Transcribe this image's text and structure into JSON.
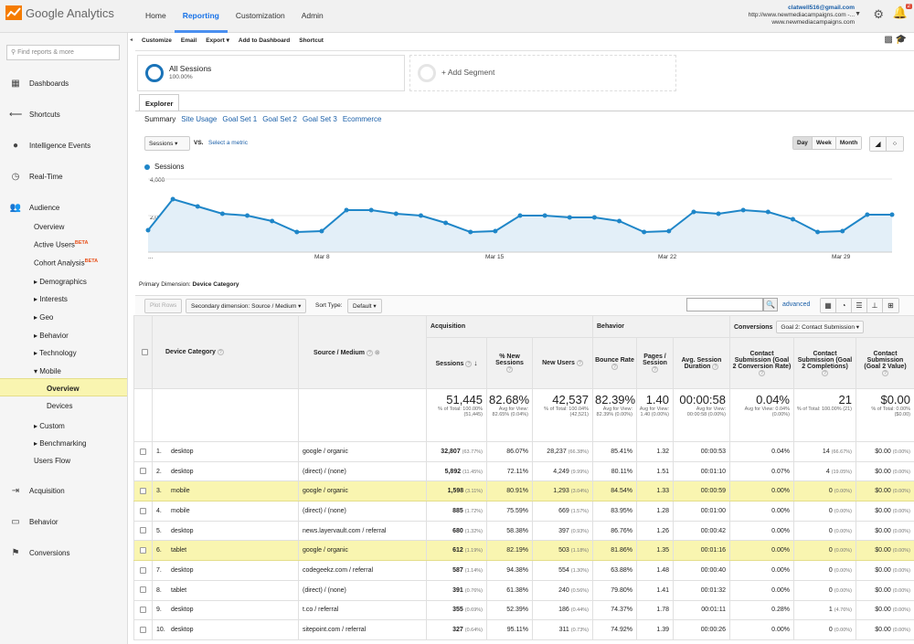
{
  "app": {
    "name": "Google Analytics"
  },
  "topnav": [
    "Home",
    "Reporting",
    "Customization",
    "Admin"
  ],
  "account": {
    "email": "clatwell516@gmail.com",
    "property": "http://www.newmediacampaigns.com -...",
    "view": "www.newmediacampaigns.com"
  },
  "notifications": {
    "count": "2"
  },
  "sidebar": {
    "search_placeholder": "Find reports & more",
    "items": [
      "Dashboards",
      "Shortcuts",
      "Intelligence Events",
      "Real-Time",
      "Audience",
      "Acquisition",
      "Behavior",
      "Conversions"
    ],
    "audience_sub": [
      "Overview",
      "Active Users",
      "Cohort Analysis",
      "Demographics",
      "Interests",
      "Geo",
      "Behavior",
      "Technology",
      "Mobile",
      "Overview",
      "Devices",
      "Custom",
      "Benchmarking",
      "Users Flow"
    ],
    "beta": "BETA"
  },
  "toolbar": [
    "Customize",
    "Email",
    "Export",
    "Add to Dashboard",
    "Shortcut"
  ],
  "segments": {
    "active": {
      "name": "All Sessions",
      "pct": "100.00%"
    },
    "add": "+ Add Segment"
  },
  "explorer": {
    "tab": "Explorer",
    "subtabs": [
      "Summary",
      "Site Usage",
      "Goal Set 1",
      "Goal Set 2",
      "Goal Set 3",
      "Ecommerce"
    ]
  },
  "chart_controls": {
    "metric": "Sessions",
    "vs": "VS.",
    "select_metric": "Select a metric",
    "periods": [
      "Day",
      "Week",
      "Month"
    ],
    "active_period": "Day"
  },
  "chart_data": {
    "type": "area",
    "series": [
      {
        "name": "Sessions",
        "color": "#1f86c8",
        "values": [
          1200,
          2900,
          2500,
          2100,
          2000,
          1700,
          1100,
          1150,
          2300,
          2300,
          2100,
          2000,
          1600,
          1100,
          1150,
          2000,
          2000,
          1900,
          1900,
          1700,
          1100,
          1150,
          2200,
          2100,
          2300,
          2200,
          1800,
          1100,
          1150,
          2050,
          2050
        ]
      }
    ],
    "y_ticks": [
      "4,000",
      "2,000"
    ],
    "x_ticks": [
      "...",
      "Mar 8",
      "Mar 15",
      "Mar 22",
      "Mar 29"
    ],
    "ylim": [
      0,
      4000
    ],
    "grid": true,
    "legend": "top-left"
  },
  "table_controls": {
    "primary_dim_label": "Primary Dimension:",
    "primary_dim": "Device Category",
    "plot_rows": "Plot Rows",
    "secondary": "Secondary dimension: Source / Medium",
    "sort_label": "Sort Type:",
    "sort": "Default",
    "advanced": "advanced"
  },
  "table": {
    "groups": {
      "acq": "Acquisition",
      "beh": "Behavior",
      "conv": "Conversions",
      "goal": "Goal 2: Contact Submission"
    },
    "headers": [
      "Device Category",
      "Source / Medium",
      "Sessions",
      "% New Sessions",
      "New Users",
      "Bounce Rate",
      "Pages / Session",
      "Avg. Session Duration",
      "Contact Submission (Goal 2 Conversion Rate)",
      "Contact Submission (Goal 2 Completions)",
      "Contact Submission (Goal 2 Value)"
    ],
    "totals": [
      {
        "big": "51,445",
        "small": "% of Total: 100.00% (51,445)"
      },
      {
        "big": "82.68%",
        "small": "Avg for View: 82.65% (0.04%)"
      },
      {
        "big": "42,537",
        "small": "% of Total: 100.04% (42,521)"
      },
      {
        "big": "82.39%",
        "small": "Avg for View: 82.39% (0.00%)"
      },
      {
        "big": "1.40",
        "small": "Avg for View: 1.40 (0.00%)"
      },
      {
        "big": "00:00:58",
        "small": "Avg for View: 00:00:58 (0.00%)"
      },
      {
        "big": "0.04%",
        "small": "Avg for View: 0.04% (0.00%)"
      },
      {
        "big": "21",
        "small": "% of Total: 100.00% (21)"
      },
      {
        "big": "$0.00",
        "small": "% of Total: 0.00% ($0.00)"
      }
    ],
    "rows": [
      {
        "n": "1.",
        "dev": "desktop",
        "src": "google / organic",
        "s": "32,807",
        "sp": "(63.77%)",
        "ns": "86.07%",
        "nu": "28,237",
        "nup": "(66.38%)",
        "br": "85.41%",
        "pps": "1.32",
        "dur": "00:00:53",
        "cr": "0.04%",
        "c": "14",
        "cp": "(66.67%)",
        "v": "$0.00",
        "vp": "(0.00%)",
        "hl": false
      },
      {
        "n": "2.",
        "dev": "desktop",
        "src": "(direct) / (none)",
        "s": "5,892",
        "sp": "(11.45%)",
        "ns": "72.11%",
        "nu": "4,249",
        "nup": "(9.99%)",
        "br": "80.11%",
        "pps": "1.51",
        "dur": "00:01:10",
        "cr": "0.07%",
        "c": "4",
        "cp": "(19.05%)",
        "v": "$0.00",
        "vp": "(0.00%)",
        "hl": false
      },
      {
        "n": "3.",
        "dev": "mobile",
        "src": "google / organic",
        "s": "1,598",
        "sp": "(3.11%)",
        "ns": "80.91%",
        "nu": "1,293",
        "nup": "(3.04%)",
        "br": "84.54%",
        "pps": "1.33",
        "dur": "00:00:59",
        "cr": "0.00%",
        "c": "0",
        "cp": "(0.00%)",
        "v": "$0.00",
        "vp": "(0.00%)",
        "hl": true
      },
      {
        "n": "4.",
        "dev": "mobile",
        "src": "(direct) / (none)",
        "s": "885",
        "sp": "(1.72%)",
        "ns": "75.59%",
        "nu": "669",
        "nup": "(1.57%)",
        "br": "83.95%",
        "pps": "1.28",
        "dur": "00:01:00",
        "cr": "0.00%",
        "c": "0",
        "cp": "(0.00%)",
        "v": "$0.00",
        "vp": "(0.00%)",
        "hl": false
      },
      {
        "n": "5.",
        "dev": "desktop",
        "src": "news.layervault.com / referral",
        "s": "680",
        "sp": "(1.32%)",
        "ns": "58.38%",
        "nu": "397",
        "nup": "(0.93%)",
        "br": "86.76%",
        "pps": "1.26",
        "dur": "00:00:42",
        "cr": "0.00%",
        "c": "0",
        "cp": "(0.00%)",
        "v": "$0.00",
        "vp": "(0.00%)",
        "hl": false
      },
      {
        "n": "6.",
        "dev": "tablet",
        "src": "google / organic",
        "s": "612",
        "sp": "(1.19%)",
        "ns": "82.19%",
        "nu": "503",
        "nup": "(1.18%)",
        "br": "81.86%",
        "pps": "1.35",
        "dur": "00:01:16",
        "cr": "0.00%",
        "c": "0",
        "cp": "(0.00%)",
        "v": "$0.00",
        "vp": "(0.00%)",
        "hl": true
      },
      {
        "n": "7.",
        "dev": "desktop",
        "src": "codegeekz.com / referral",
        "s": "587",
        "sp": "(1.14%)",
        "ns": "94.38%",
        "nu": "554",
        "nup": "(1.30%)",
        "br": "63.88%",
        "pps": "1.48",
        "dur": "00:00:40",
        "cr": "0.00%",
        "c": "0",
        "cp": "(0.00%)",
        "v": "$0.00",
        "vp": "(0.00%)",
        "hl": false
      },
      {
        "n": "8.",
        "dev": "tablet",
        "src": "(direct) / (none)",
        "s": "391",
        "sp": "(0.76%)",
        "ns": "61.38%",
        "nu": "240",
        "nup": "(0.56%)",
        "br": "79.80%",
        "pps": "1.41",
        "dur": "00:01:32",
        "cr": "0.00%",
        "c": "0",
        "cp": "(0.00%)",
        "v": "$0.00",
        "vp": "(0.00%)",
        "hl": false
      },
      {
        "n": "9.",
        "dev": "desktop",
        "src": "t.co / referral",
        "s": "355",
        "sp": "(0.69%)",
        "ns": "52.39%",
        "nu": "186",
        "nup": "(0.44%)",
        "br": "74.37%",
        "pps": "1.78",
        "dur": "00:01:11",
        "cr": "0.28%",
        "c": "1",
        "cp": "(4.76%)",
        "v": "$0.00",
        "vp": "(0.00%)",
        "hl": false
      },
      {
        "n": "10.",
        "dev": "desktop",
        "src": "sitepoint.com / referral",
        "s": "327",
        "sp": "(0.64%)",
        "ns": "95.11%",
        "nu": "311",
        "nup": "(0.73%)",
        "br": "74.92%",
        "pps": "1.39",
        "dur": "00:00:26",
        "cr": "0.00%",
        "c": "0",
        "cp": "(0.00%)",
        "v": "$0.00",
        "vp": "(0.00%)",
        "hl": false
      }
    ]
  }
}
